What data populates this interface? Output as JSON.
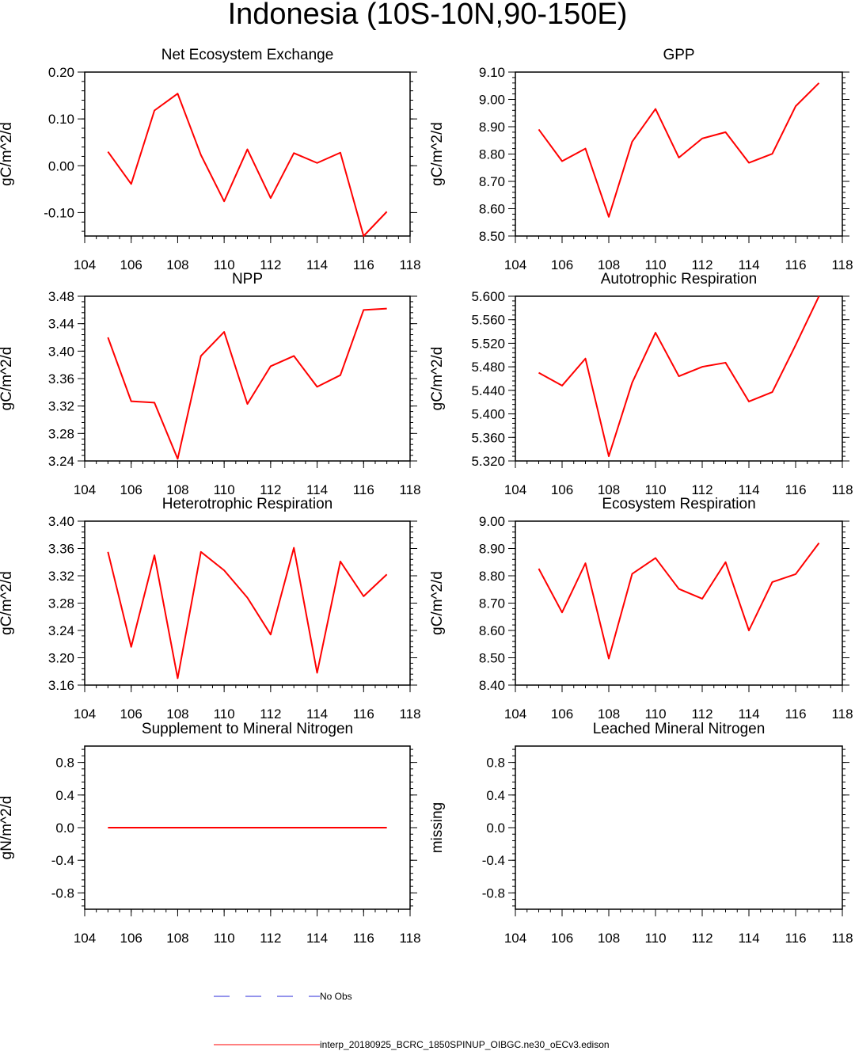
{
  "title": "Indonesia (10S-10N,90-150E)",
  "colors": {
    "model_line": "#ff0000",
    "obs_line": "#2a2ad8",
    "axis": "#000000"
  },
  "legend": [
    {
      "label": "No Obs",
      "style": "dashed",
      "color": "#2a2ad8"
    },
    {
      "label": "interp_20180925_BCRC_1850SPINUP_OIBGC.ne30_oECv3.edison",
      "style": "solid",
      "color": "#ff0000"
    }
  ],
  "chart_data": [
    {
      "type": "line",
      "title": "Net Ecosystem Exchange",
      "xlabel": "",
      "ylabel": "gC/m^2/d",
      "xlim": [
        104,
        118
      ],
      "ylim": [
        -0.15,
        0.2
      ],
      "yticks": [
        -0.1,
        0.0,
        0.1,
        0.2
      ],
      "ytick_labels": [
        "-0.10",
        "0.00",
        "0.10",
        "0.20"
      ],
      "ytick_minor": 0.02,
      "xticks": [
        104,
        106,
        108,
        110,
        112,
        114,
        116,
        118
      ],
      "series": [
        {
          "x": [
            105,
            106,
            107,
            108,
            109,
            110,
            111,
            112,
            113,
            114,
            115,
            116,
            117
          ],
          "values": [
            0.03,
            -0.039,
            0.118,
            0.154,
            0.023,
            -0.076,
            0.035,
            -0.069,
            0.027,
            0.006,
            0.028,
            -0.15,
            -0.098
          ]
        }
      ]
    },
    {
      "type": "line",
      "title": "GPP",
      "xlabel": "",
      "ylabel": "gC/m^2/d",
      "xlim": [
        104,
        118
      ],
      "ylim": [
        8.5,
        9.1
      ],
      "yticks": [
        8.5,
        8.6,
        8.7,
        8.8,
        8.9,
        9.0,
        9.1
      ],
      "ytick_labels": [
        "8.50",
        "8.60",
        "8.70",
        "8.80",
        "8.90",
        "9.00",
        "9.10"
      ],
      "ytick_minor": 0.02,
      "xticks": [
        104,
        106,
        108,
        110,
        112,
        114,
        116,
        118
      ],
      "series": [
        {
          "x": [
            105,
            106,
            107,
            108,
            109,
            110,
            111,
            112,
            113,
            114,
            115,
            116,
            117
          ],
          "values": [
            8.89,
            8.774,
            8.82,
            8.57,
            8.845,
            8.965,
            8.787,
            8.857,
            8.88,
            8.768,
            8.801,
            8.975,
            9.06
          ]
        }
      ]
    },
    {
      "type": "line",
      "title": "NPP",
      "xlabel": "",
      "ylabel": "gC/m^2/d",
      "xlim": [
        104,
        118
      ],
      "ylim": [
        3.24,
        3.48
      ],
      "yticks": [
        3.24,
        3.28,
        3.32,
        3.36,
        3.4,
        3.44,
        3.48
      ],
      "ytick_labels": [
        "3.24",
        "3.28",
        "3.32",
        "3.36",
        "3.40",
        "3.44",
        "3.48"
      ],
      "ytick_minor": 0.008,
      "xticks": [
        104,
        106,
        108,
        110,
        112,
        114,
        116,
        118
      ],
      "series": [
        {
          "x": [
            105,
            106,
            107,
            108,
            109,
            110,
            111,
            112,
            113,
            114,
            115,
            116,
            117
          ],
          "values": [
            3.42,
            3.327,
            3.325,
            3.243,
            3.393,
            3.428,
            3.323,
            3.378,
            3.393,
            3.348,
            3.365,
            3.46,
            3.462
          ]
        }
      ]
    },
    {
      "type": "line",
      "title": "Autotrophic Respiration",
      "xlabel": "",
      "ylabel": "gC/m^2/d",
      "xlim": [
        104,
        118
      ],
      "ylim": [
        5.32,
        5.6
      ],
      "yticks": [
        5.32,
        5.36,
        5.4,
        5.44,
        5.48,
        5.52,
        5.56,
        5.6
      ],
      "ytick_labels": [
        "5.320",
        "5.360",
        "5.400",
        "5.440",
        "5.480",
        "5.520",
        "5.560",
        "5.600"
      ],
      "ytick_minor": 0.008,
      "xticks": [
        104,
        106,
        108,
        110,
        112,
        114,
        116,
        118
      ],
      "series": [
        {
          "x": [
            105,
            106,
            107,
            108,
            109,
            110,
            111,
            112,
            113,
            114,
            115,
            116,
            117
          ],
          "values": [
            5.47,
            5.448,
            5.494,
            5.328,
            5.453,
            5.538,
            5.464,
            5.48,
            5.487,
            5.421,
            5.437,
            5.517,
            5.6
          ]
        }
      ]
    },
    {
      "type": "line",
      "title": "Heterotrophic Respiration",
      "xlabel": "",
      "ylabel": "gC/m^2/d",
      "xlim": [
        104,
        118
      ],
      "ylim": [
        3.16,
        3.4
      ],
      "yticks": [
        3.16,
        3.2,
        3.24,
        3.28,
        3.32,
        3.36,
        3.4
      ],
      "ytick_labels": [
        "3.16",
        "3.20",
        "3.24",
        "3.28",
        "3.32",
        "3.36",
        "3.40"
      ],
      "ytick_minor": 0.008,
      "xticks": [
        104,
        106,
        108,
        110,
        112,
        114,
        116,
        118
      ],
      "series": [
        {
          "x": [
            105,
            106,
            107,
            108,
            109,
            110,
            111,
            112,
            113,
            114,
            115,
            116,
            117
          ],
          "values": [
            3.355,
            3.216,
            3.35,
            3.17,
            3.355,
            3.328,
            3.288,
            3.234,
            3.361,
            3.178,
            3.341,
            3.29,
            3.322
          ]
        }
      ]
    },
    {
      "type": "line",
      "title": "Ecosystem Respiration",
      "xlabel": "",
      "ylabel": "gC/m^2/d",
      "xlim": [
        104,
        118
      ],
      "ylim": [
        8.4,
        9.0
      ],
      "yticks": [
        8.4,
        8.5,
        8.6,
        8.7,
        8.8,
        8.9,
        9.0
      ],
      "ytick_labels": [
        "8.40",
        "8.50",
        "8.60",
        "8.70",
        "8.80",
        "8.90",
        "9.00"
      ],
      "ytick_minor": 0.02,
      "xticks": [
        104,
        106,
        108,
        110,
        112,
        114,
        116,
        118
      ],
      "series": [
        {
          "x": [
            105,
            106,
            107,
            108,
            109,
            110,
            111,
            112,
            113,
            114,
            115,
            116,
            117
          ],
          "values": [
            8.826,
            8.666,
            8.846,
            8.497,
            8.807,
            8.865,
            8.752,
            8.716,
            8.85,
            8.6,
            8.777,
            8.806,
            8.92
          ]
        }
      ]
    },
    {
      "type": "line",
      "title": "Supplement to Mineral Nitrogen",
      "xlabel": "",
      "ylabel": "gN/m^2/d",
      "xlim": [
        104,
        118
      ],
      "ylim": [
        -1.0,
        1.0
      ],
      "yticks": [
        -0.8,
        -0.4,
        0.0,
        0.4,
        0.8
      ],
      "ytick_labels": [
        "-0.8",
        "-0.4",
        "0.0",
        "0.4",
        "0.8"
      ],
      "ytick_minor": 0.08,
      "xticks": [
        104,
        106,
        108,
        110,
        112,
        114,
        116,
        118
      ],
      "series": [
        {
          "x": [
            105,
            106,
            107,
            108,
            109,
            110,
            111,
            112,
            113,
            114,
            115,
            116,
            117
          ],
          "values": [
            0,
            0,
            0,
            0,
            0,
            0,
            0,
            0,
            0,
            0,
            0,
            0,
            0
          ]
        }
      ]
    },
    {
      "type": "line",
      "title": "Leached Mineral Nitrogen",
      "xlabel": "",
      "ylabel": "missing",
      "xlim": [
        104,
        118
      ],
      "ylim": [
        -1.0,
        1.0
      ],
      "yticks": [
        -0.8,
        -0.4,
        0.0,
        0.4,
        0.8
      ],
      "ytick_labels": [
        "-0.8",
        "-0.4",
        "0.0",
        "0.4",
        "0.8"
      ],
      "ytick_minor": 0.08,
      "xticks": [
        104,
        106,
        108,
        110,
        112,
        114,
        116,
        118
      ],
      "series": []
    }
  ]
}
